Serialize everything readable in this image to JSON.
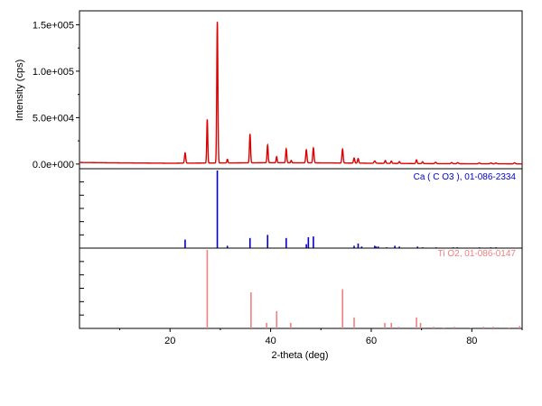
{
  "chart_data": {
    "type": "line",
    "xlabel": "2-theta (deg)",
    "ylabel": "Intensity (cps)",
    "xlim": [
      2,
      90
    ],
    "x_ticks": [
      20,
      40,
      60,
      80
    ],
    "ylim": [
      -5000,
      165000
    ],
    "y_ticks": [
      0,
      50000,
      100000,
      150000
    ],
    "y_tick_labels": [
      "0.0e+000",
      "5.0e+004",
      "1.0e+005",
      "1.5e+005"
    ],
    "colors": {
      "pattern": "#dd0000",
      "reference1": "#0000cc",
      "reference2": "#f08080",
      "axis": "#000000"
    },
    "pattern": {
      "background": [
        [
          2,
          1700
        ],
        [
          10,
          1300
        ],
        [
          20,
          900
        ],
        [
          30,
          1200
        ],
        [
          40,
          1500
        ],
        [
          50,
          1300
        ],
        [
          60,
          900
        ],
        [
          70,
          500
        ],
        [
          80,
          300
        ],
        [
          90,
          200
        ]
      ],
      "peaks": [
        [
          23.0,
          11000,
          0.12
        ],
        [
          27.4,
          47000,
          0.1
        ],
        [
          29.4,
          152000,
          0.11
        ],
        [
          31.4,
          4000,
          0.1
        ],
        [
          35.9,
          31000,
          0.11
        ],
        [
          39.4,
          19000,
          0.11
        ],
        [
          41.2,
          6500,
          0.1
        ],
        [
          43.1,
          15000,
          0.11
        ],
        [
          44.1,
          2500,
          0.1
        ],
        [
          47.1,
          14000,
          0.12
        ],
        [
          48.5,
          16000,
          0.12
        ],
        [
          54.3,
          15000,
          0.12
        ],
        [
          56.6,
          5500,
          0.12
        ],
        [
          57.4,
          5000,
          0.12
        ],
        [
          60.7,
          2500,
          0.15
        ],
        [
          62.8,
          3000,
          0.12
        ],
        [
          64.0,
          2500,
          0.12
        ],
        [
          65.6,
          2000,
          0.12
        ],
        [
          69.0,
          4000,
          0.12
        ],
        [
          70.2,
          2000,
          0.12
        ],
        [
          72.8,
          1500,
          0.15
        ],
        [
          76.0,
          1200,
          0.15
        ],
        [
          77.2,
          1200,
          0.15
        ],
        [
          81.5,
          1000,
          0.15
        ],
        [
          83.8,
          1000,
          0.15
        ],
        [
          84.8,
          900,
          0.15
        ],
        [
          88.5,
          1200,
          0.15
        ]
      ]
    },
    "references": [
      {
        "name": "Ca ( C O3 ), 01-086-2334",
        "sticks": [
          [
            23.0,
            11
          ],
          [
            29.4,
            100
          ],
          [
            31.4,
            3
          ],
          [
            35.9,
            13
          ],
          [
            39.4,
            17
          ],
          [
            43.1,
            13
          ],
          [
            47.1,
            5
          ],
          [
            47.5,
            14
          ],
          [
            48.5,
            15
          ],
          [
            56.6,
            3
          ],
          [
            57.4,
            6
          ],
          [
            58.1,
            2
          ],
          [
            60.7,
            3
          ],
          [
            61.0,
            2
          ],
          [
            61.4,
            2
          ],
          [
            63.1,
            1
          ],
          [
            64.7,
            3
          ],
          [
            65.6,
            2
          ],
          [
            69.2,
            2
          ],
          [
            70.2,
            1
          ],
          [
            72.9,
            1
          ],
          [
            76.3,
            1
          ],
          [
            77.1,
            1
          ],
          [
            81.5,
            1
          ],
          [
            83.8,
            1
          ],
          [
            84.8,
            1
          ]
        ]
      },
      {
        "name": "Ti O2, 01-086-0147",
        "sticks": [
          [
            27.4,
            100
          ],
          [
            36.1,
            46
          ],
          [
            39.2,
            7
          ],
          [
            41.2,
            22
          ],
          [
            44.0,
            7
          ],
          [
            54.3,
            50
          ],
          [
            56.6,
            14
          ],
          [
            62.7,
            7
          ],
          [
            64.0,
            7
          ],
          [
            65.5,
            2
          ],
          [
            69.0,
            14
          ],
          [
            69.8,
            7
          ],
          [
            72.4,
            2
          ],
          [
            74.4,
            1
          ],
          [
            76.5,
            2
          ],
          [
            79.8,
            1
          ],
          [
            82.3,
            2
          ],
          [
            84.2,
            2
          ],
          [
            87.4,
            1
          ],
          [
            89.5,
            3
          ]
        ]
      }
    ]
  }
}
